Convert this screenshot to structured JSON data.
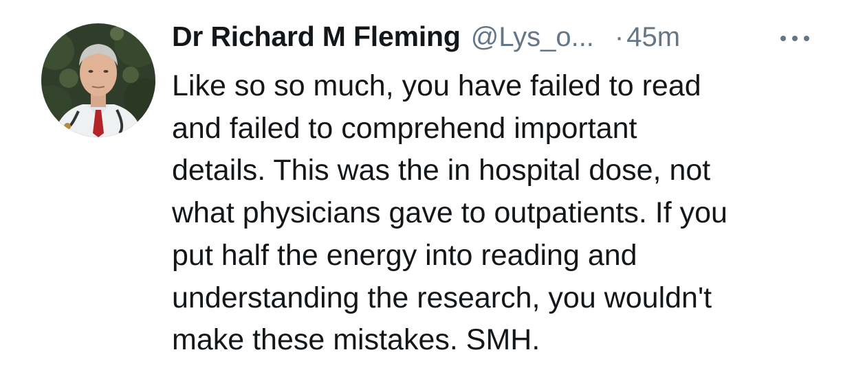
{
  "tweet": {
    "author": {
      "display_name": "Dr Richard M Fleming",
      "handle": "@Lys_o...",
      "avatar_icon": "profile-photo"
    },
    "separator": "·",
    "timestamp": "45m",
    "more_icon": "more-options-icon",
    "body_lines": [
      "Like so so much, you have failed to read",
      "and failed to comprehend important",
      "details. This was the in hospital dose, not",
      "what physicians gave to outpatients. If you",
      "put half the energy into reading and",
      "understanding the research, you wouldn't",
      "make these mistakes. SMH."
    ]
  },
  "colors": {
    "text_primary": "#14171a",
    "text_secondary": "#657786",
    "background": "#ffffff"
  }
}
